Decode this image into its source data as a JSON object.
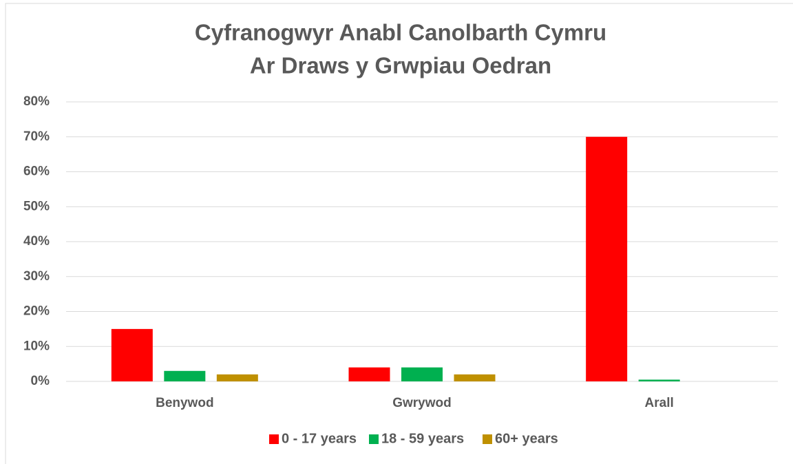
{
  "chart_data": {
    "type": "bar",
    "title": [
      "Cyfranogwyr Anabl Canolbarth Cymru",
      "Ar Draws y Grwpiau Oedran"
    ],
    "categories": [
      "Benywod",
      "Gwrywod",
      "Arall"
    ],
    "series": [
      {
        "name": "0 - 17 years",
        "color": "#ff0000",
        "values": [
          15,
          4,
          70
        ]
      },
      {
        "name": "18 - 59 years",
        "color": "#00b050",
        "values": [
          3,
          4,
          0.5
        ]
      },
      {
        "name": "60+ years",
        "color": "#bf9000",
        "values": [
          2,
          2,
          0
        ]
      }
    ],
    "ylim": [
      0,
      80
    ],
    "yticks": [
      {
        "value": 0,
        "label": "0%"
      },
      {
        "value": 10,
        "label": "10%"
      },
      {
        "value": 20,
        "label": "20%"
      },
      {
        "value": 30,
        "label": "30%"
      },
      {
        "value": 40,
        "label": "40%"
      },
      {
        "value": 50,
        "label": "50%"
      },
      {
        "value": 60,
        "label": "60%"
      },
      {
        "value": 70,
        "label": "70%"
      },
      {
        "value": 80,
        "label": "80%"
      }
    ],
    "grid": true,
    "legend": "bottom"
  }
}
